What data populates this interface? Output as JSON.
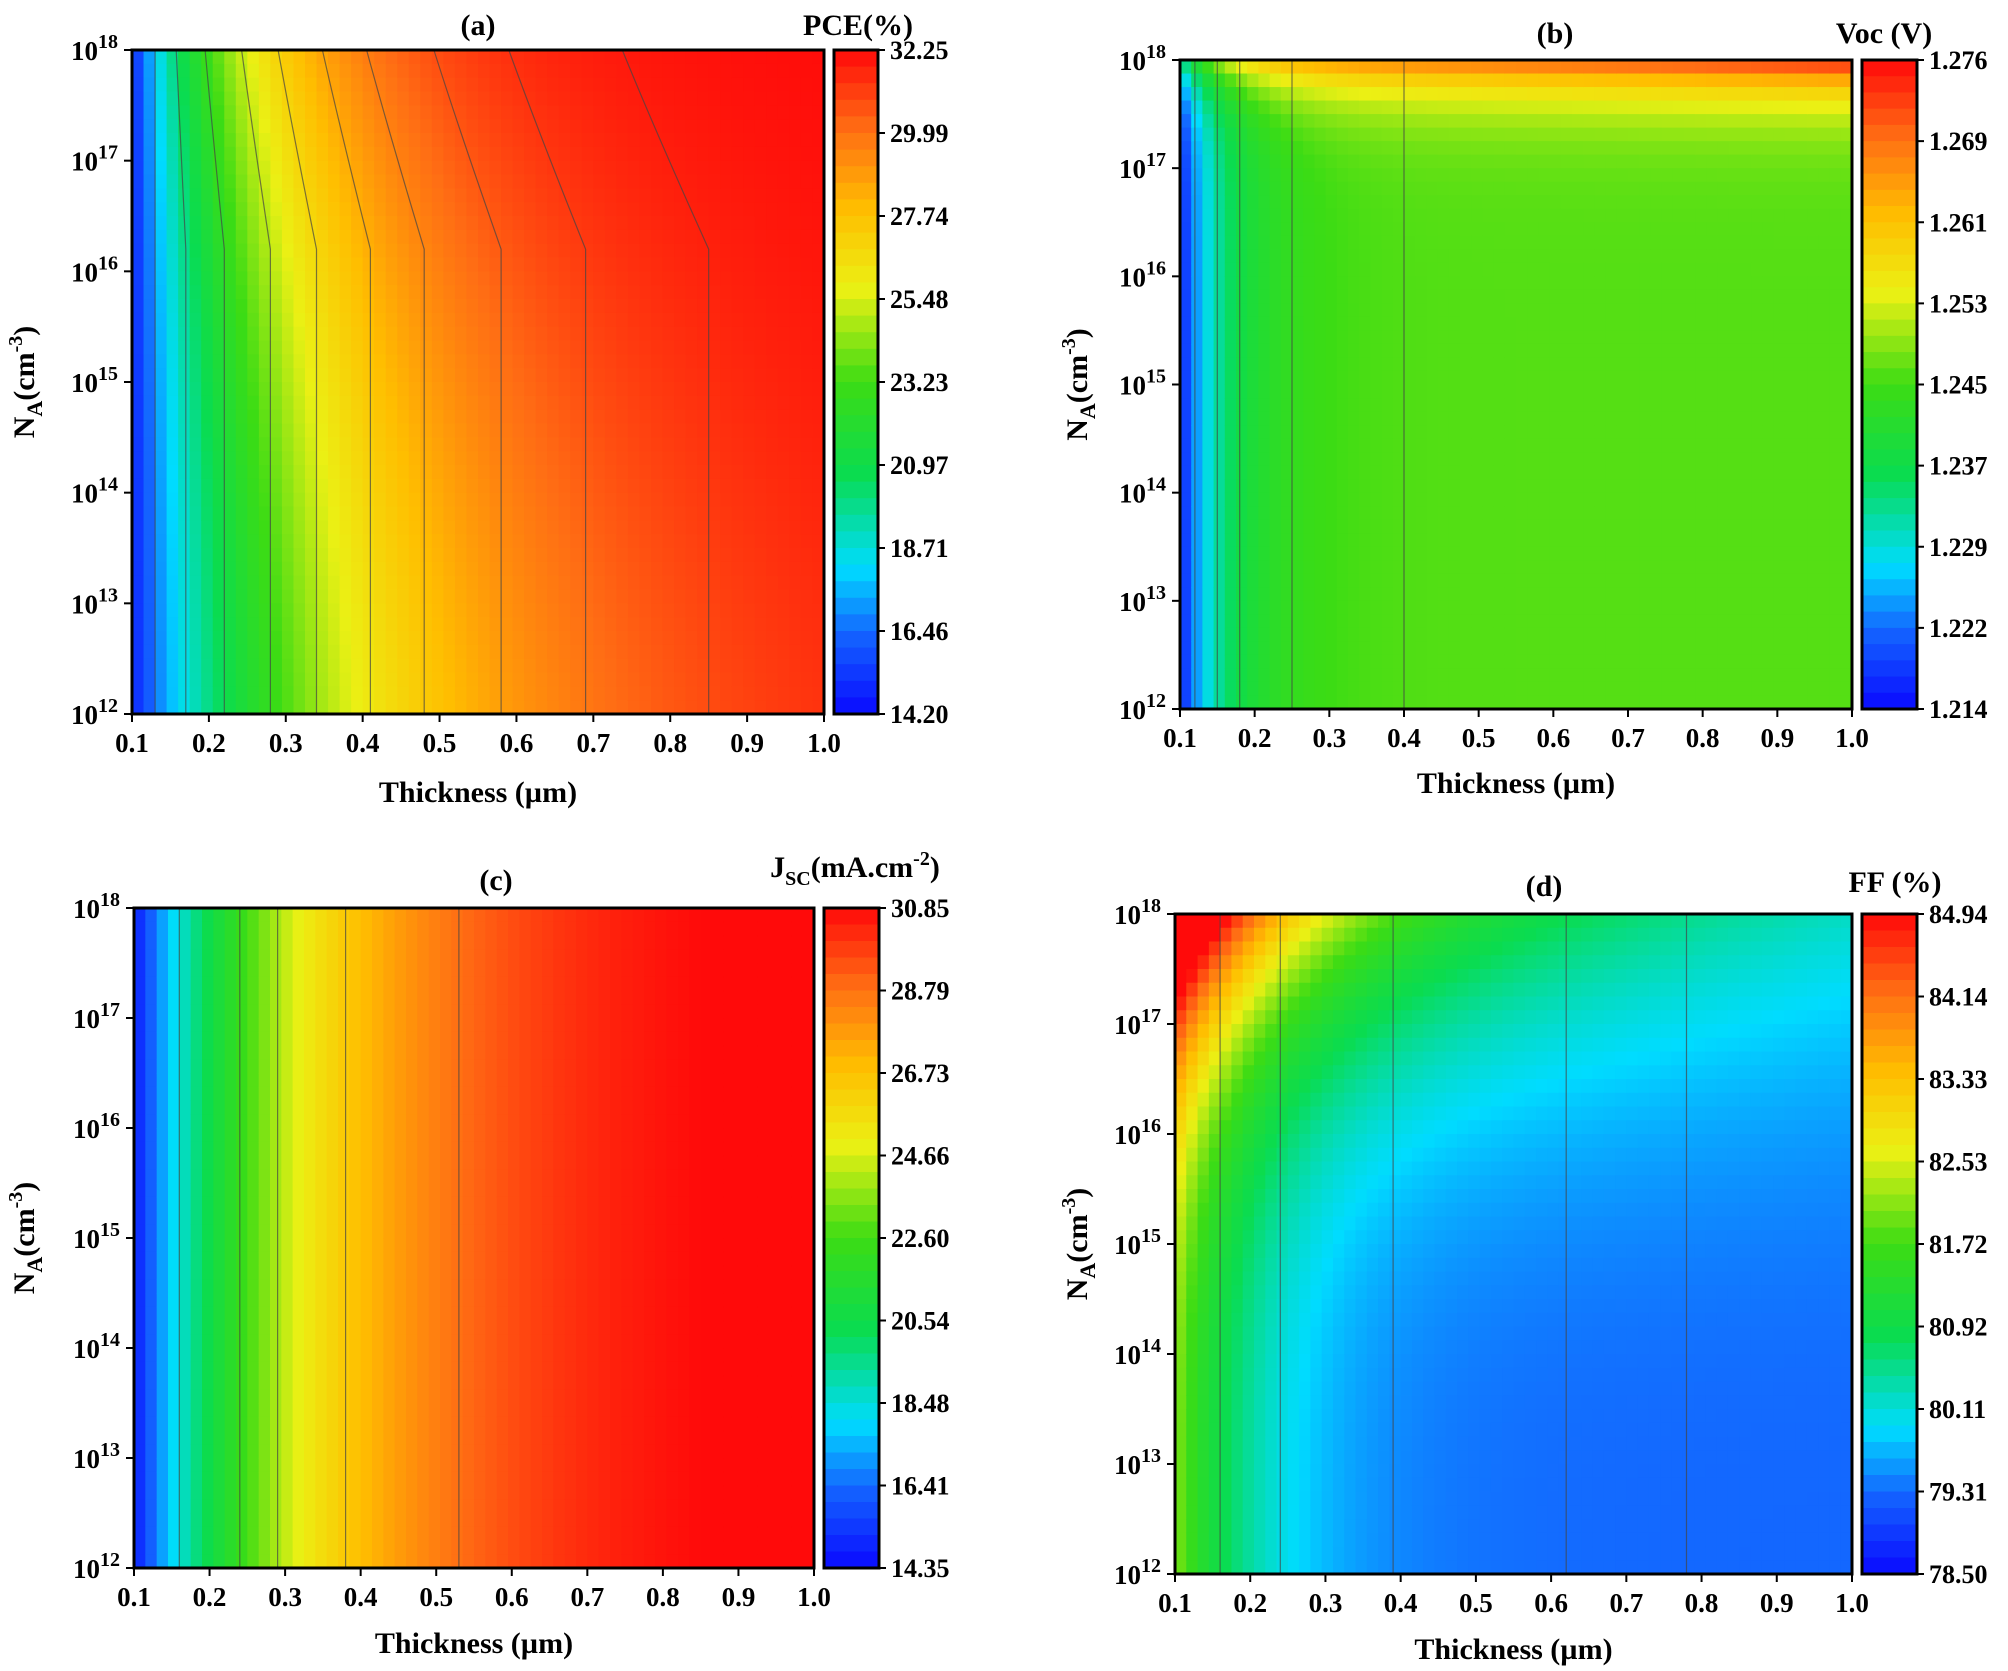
{
  "chart_data": [
    {
      "type": "heatmap",
      "panel_label": "(a)",
      "colorbar_title": "PCE(%)",
      "xlabel": "Thickness (µm)",
      "ylabel": "NA(cm-3)",
      "ylabel_main": "N",
      "ylabel_sub": "A",
      "ylabel_unit": "(cm",
      "ylabel_sup": "-3",
      "ylabel_close": ")",
      "x_ticks": [
        "0.1",
        "0.2",
        "0.3",
        "0.4",
        "0.5",
        "0.6",
        "0.7",
        "0.8",
        "0.9",
        "1.0"
      ],
      "y_ticks": [
        "10^12",
        "10^13",
        "10^14",
        "10^15",
        "10^16",
        "10^17",
        "10^18"
      ],
      "y_tick_base": "10",
      "y_tick_exps": [
        "12",
        "13",
        "14",
        "15",
        "16",
        "17",
        "18"
      ],
      "xlim": [
        0.1,
        1.0
      ],
      "ylim_log10": [
        12,
        18
      ],
      "colorbar_ticks": [
        "14.20",
        "16.46",
        "18.71",
        "20.97",
        "23.23",
        "25.48",
        "27.74",
        "29.99",
        "32.25"
      ],
      "colorbar_range": [
        14.2,
        32.25
      ],
      "contour_x_positions": [
        0.13,
        0.17,
        0.22,
        0.28,
        0.34,
        0.41,
        0.48,
        0.58,
        0.69,
        0.85
      ],
      "description_pattern": "value increases with thickness; weak dependence on NA"
    },
    {
      "type": "heatmap",
      "panel_label": "(b)",
      "colorbar_title": "Voc (V)",
      "xlabel": "Thickness (µm)",
      "ylabel": "NA(cm-3)",
      "ylabel_main": "N",
      "ylabel_sub": "A",
      "ylabel_unit": "(cm",
      "ylabel_sup": "-3",
      "ylabel_close": ")",
      "x_ticks": [
        "0.1",
        "0.2",
        "0.3",
        "0.4",
        "0.5",
        "0.6",
        "0.7",
        "0.8",
        "0.9",
        "1.0"
      ],
      "y_ticks": [
        "10^12",
        "10^13",
        "10^14",
        "10^15",
        "10^16",
        "10^17",
        "10^18"
      ],
      "y_tick_base": "10",
      "y_tick_exps": [
        "12",
        "13",
        "14",
        "15",
        "16",
        "17",
        "18"
      ],
      "xlim": [
        0.1,
        1.0
      ],
      "ylim_log10": [
        12,
        18
      ],
      "colorbar_ticks": [
        "1.214",
        "1.222",
        "1.229",
        "1.237",
        "1.245",
        "1.253",
        "1.261",
        "1.269",
        "1.276"
      ],
      "colorbar_range": [
        1.214,
        1.276
      ],
      "contour_x_positions": [
        0.12,
        0.15,
        0.18,
        0.25,
        0.4
      ],
      "description_pattern": "low near thin layers; rises sharply near NA = 1e18"
    },
    {
      "type": "heatmap",
      "panel_label": "(c)",
      "colorbar_title": "JSC(mA.cm-2)",
      "colorbar_title_main": "J",
      "colorbar_title_sub": "SC",
      "colorbar_title_unit": "(mA.cm",
      "colorbar_title_sup": "-2",
      "colorbar_title_close": ")",
      "xlabel": "Thickness (µm)",
      "ylabel": "NA(cm-3)",
      "ylabel_main": "N",
      "ylabel_sub": "A",
      "ylabel_unit": "(cm",
      "ylabel_sup": "-3",
      "ylabel_close": ")",
      "x_ticks": [
        "0.1",
        "0.2",
        "0.3",
        "0.4",
        "0.5",
        "0.6",
        "0.7",
        "0.8",
        "0.9",
        "1.0"
      ],
      "y_ticks": [
        "10^12",
        "10^13",
        "10^14",
        "10^15",
        "10^16",
        "10^17",
        "10^18"
      ],
      "y_tick_base": "10",
      "y_tick_exps": [
        "12",
        "13",
        "14",
        "15",
        "16",
        "17",
        "18"
      ],
      "xlim": [
        0.1,
        1.0
      ],
      "ylim_log10": [
        12,
        18
      ],
      "colorbar_ticks": [
        "14.35",
        "16.41",
        "18.48",
        "20.54",
        "22.60",
        "24.66",
        "26.73",
        "28.79",
        "30.85"
      ],
      "colorbar_range": [
        14.35,
        30.85
      ],
      "contour_x_positions": [
        0.16,
        0.24,
        0.29,
        0.38,
        0.53
      ],
      "description_pattern": "value increases with thickness; independent of NA"
    },
    {
      "type": "heatmap",
      "panel_label": "(d)",
      "colorbar_title": "FF (%)",
      "xlabel": "Thickness (µm)",
      "ylabel": "NA(cm-3)",
      "ylabel_main": "N",
      "ylabel_sub": "A",
      "ylabel_unit": "(cm",
      "ylabel_sup": "-3",
      "ylabel_close": ")",
      "x_ticks": [
        "0.1",
        "0.2",
        "0.3",
        "0.4",
        "0.5",
        "0.6",
        "0.7",
        "0.8",
        "0.9",
        "1.0"
      ],
      "y_ticks": [
        "10^12",
        "10^13",
        "10^14",
        "10^15",
        "10^16",
        "10^17",
        "10^18"
      ],
      "y_tick_base": "10",
      "y_tick_exps": [
        "12",
        "13",
        "14",
        "15",
        "16",
        "17",
        "18"
      ],
      "xlim": [
        0.1,
        1.0
      ],
      "ylim_log10": [
        12,
        18
      ],
      "colorbar_ticks": [
        "78.50",
        "79.31",
        "80.11",
        "80.92",
        "81.72",
        "82.53",
        "83.33",
        "84.14",
        "84.94"
      ],
      "colorbar_range": [
        78.5,
        84.94
      ],
      "contour_x_positions": [
        0.16,
        0.24,
        0.39,
        0.62,
        0.78
      ],
      "description_pattern": "high at thin layers and high NA; decreases with thickness"
    }
  ]
}
